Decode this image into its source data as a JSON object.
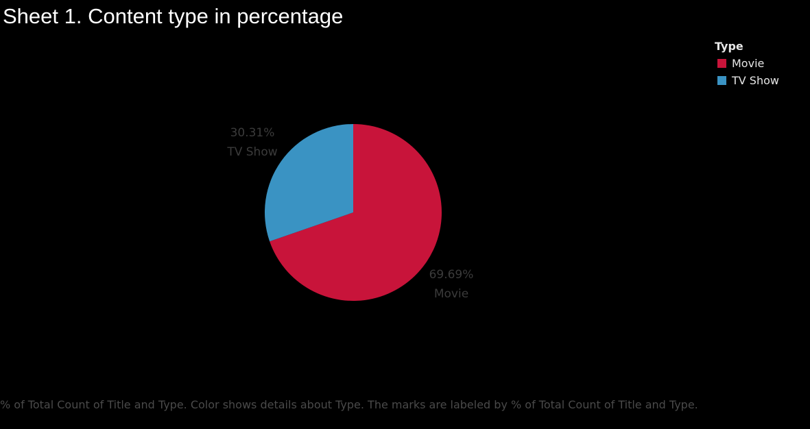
{
  "chart_data": {
    "type": "pie",
    "title": "Sheet 1. Content type in percentage",
    "legend_title": "Type",
    "legend_position": "top-right",
    "slices": [
      {
        "label": "Movie",
        "value": 69.69,
        "value_label": "69.69%",
        "color": "#c8143a"
      },
      {
        "label": "TV Show",
        "value": 30.31,
        "value_label": "30.31%",
        "color": "#3a93c3"
      }
    ]
  },
  "caption": "% of Total Count of Title and Type.  Color shows details about Type.  The marks are labeled by % of Total Count of Title and Type."
}
